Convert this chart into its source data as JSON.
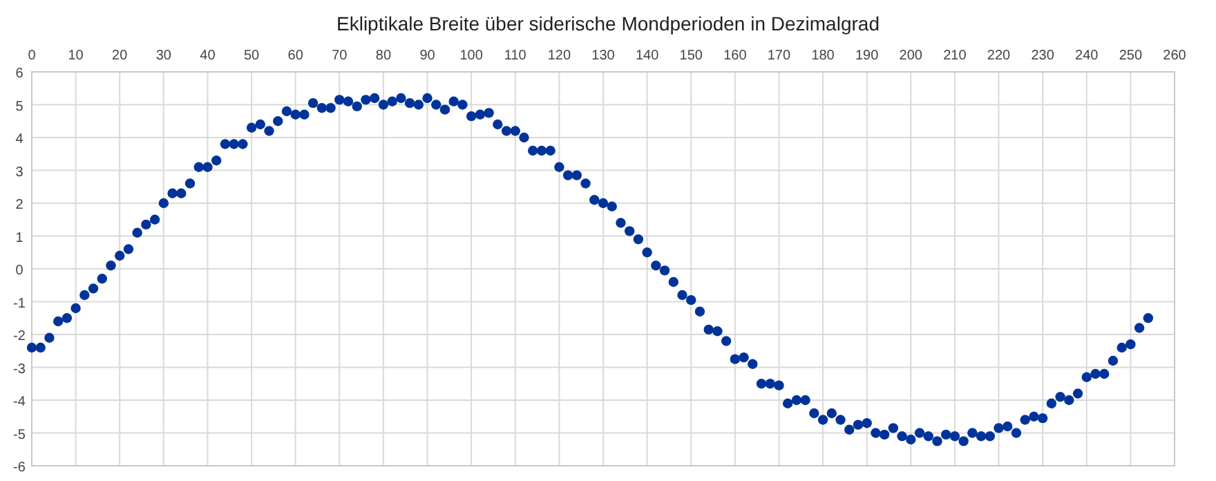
{
  "chart_data": {
    "type": "scatter",
    "title": "Ekliptikale Breite über siderische Mondperioden in Dezimalgrad",
    "x": [
      0,
      2,
      4,
      6,
      8,
      10,
      12,
      14,
      16,
      18,
      20,
      22,
      24,
      26,
      28,
      30,
      32,
      34,
      36,
      38,
      40,
      42,
      44,
      46,
      48,
      50,
      52,
      54,
      56,
      58,
      60,
      62,
      64,
      66,
      68,
      70,
      72,
      74,
      76,
      78,
      80,
      82,
      84,
      86,
      88,
      90,
      92,
      94,
      96,
      98,
      100,
      102,
      104,
      106,
      108,
      110,
      112,
      114,
      116,
      118,
      120,
      122,
      124,
      126,
      128,
      130,
      132,
      134,
      136,
      138,
      140,
      142,
      144,
      146,
      148,
      150,
      152,
      154,
      156,
      158,
      160,
      162,
      164,
      166,
      168,
      170,
      172,
      174,
      176,
      178,
      180,
      182,
      184,
      186,
      188,
      190,
      192,
      194,
      196,
      198,
      200,
      202,
      204,
      206,
      208,
      210,
      212,
      214,
      216,
      218,
      220,
      222,
      224,
      226,
      228,
      230,
      232,
      234,
      236,
      238,
      240,
      242,
      244,
      246,
      248,
      250,
      252,
      254
    ],
    "values": [
      -2.4,
      -2.4,
      -2.1,
      -1.6,
      -1.5,
      -1.2,
      -0.8,
      -0.6,
      -0.3,
      0.1,
      0.4,
      0.6,
      1.1,
      1.35,
      1.5,
      2.0,
      2.3,
      2.3,
      2.6,
      3.1,
      3.1,
      3.3,
      3.8,
      3.8,
      3.8,
      4.3,
      4.4,
      4.2,
      4.5,
      4.8,
      4.7,
      4.7,
      5.05,
      4.9,
      4.9,
      5.15,
      5.1,
      4.95,
      5.15,
      5.2,
      5.0,
      5.1,
      5.2,
      5.05,
      5.0,
      5.2,
      5.0,
      4.85,
      5.1,
      5.0,
      4.65,
      4.7,
      4.75,
      4.4,
      4.2,
      4.2,
      4.0,
      3.6,
      3.6,
      3.6,
      3.1,
      2.85,
      2.85,
      2.6,
      2.1,
      2.0,
      1.9,
      1.4,
      1.15,
      0.9,
      0.5,
      0.1,
      -0.05,
      -0.4,
      -0.8,
      -0.95,
      -1.3,
      -1.85,
      -1.9,
      -2.2,
      -2.75,
      -2.7,
      -2.9,
      -3.5,
      -3.5,
      -3.55,
      -4.1,
      -4.0,
      -4.0,
      -4.4,
      -4.6,
      -4.4,
      -4.6,
      -4.9,
      -4.75,
      -4.7,
      -5.0,
      -5.05,
      -4.85,
      -5.1,
      -5.2,
      -5.0,
      -5.1,
      -5.25,
      -5.05,
      -5.1,
      -5.25,
      -5.0,
      -5.1,
      -5.1,
      -4.85,
      -4.8,
      -5.0,
      -4.6,
      -4.5,
      -4.55,
      -4.1,
      -3.9,
      -4.0,
      -3.8,
      -3.3,
      -3.2,
      -3.2,
      -2.8,
      -2.4,
      -2.3,
      -1.8,
      -1.5
    ],
    "color": "#003399",
    "marker": "circle",
    "grid": true,
    "xlim": [
      0,
      260
    ],
    "xticks": [
      0,
      10,
      20,
      30,
      40,
      50,
      60,
      70,
      80,
      90,
      100,
      110,
      120,
      130,
      140,
      150,
      160,
      170,
      180,
      190,
      200,
      210,
      220,
      230,
      240,
      250,
      260
    ],
    "ylim": [
      -6,
      6
    ],
    "yticks": [
      -6,
      -5,
      -4,
      -3,
      -2,
      -1,
      0,
      1,
      2,
      3,
      4,
      5,
      6
    ]
  }
}
